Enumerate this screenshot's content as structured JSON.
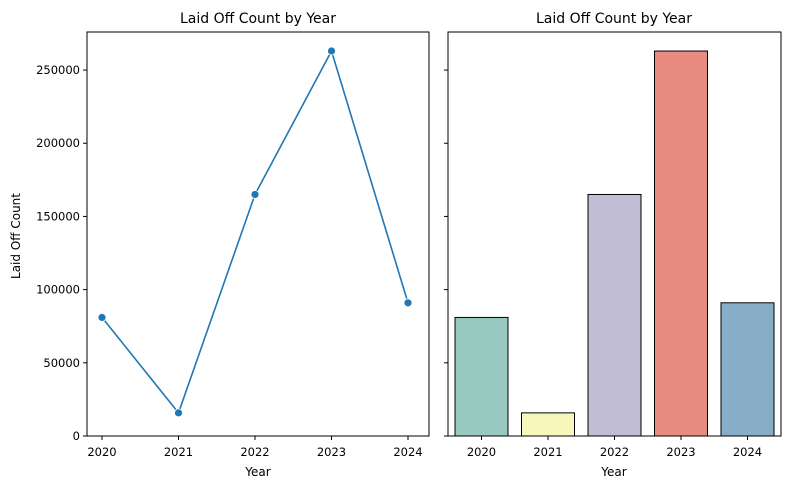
{
  "chart_data": [
    {
      "type": "line",
      "title": "Laid Off Count by Year",
      "xlabel": "Year",
      "ylabel": "Laid Off Count",
      "x": [
        "2020",
        "2021",
        "2022",
        "2023",
        "2024"
      ],
      "values": [
        81000,
        15800,
        165000,
        263000,
        91000
      ],
      "ylim": [
        0,
        276000
      ],
      "yticks": [
        "0",
        "50000",
        "100000",
        "150000",
        "200000",
        "250000"
      ],
      "marker": "circle",
      "line_color": "#1f77b4",
      "grid": false
    },
    {
      "type": "bar",
      "title": "Laid Off Count by Year",
      "xlabel": "Year",
      "ylabel": "",
      "categories": [
        "2020",
        "2021",
        "2022",
        "2023",
        "2024"
      ],
      "values": [
        81000,
        15800,
        165000,
        263000,
        91000
      ],
      "ylim": [
        0,
        276000
      ],
      "shared_y": true,
      "colors": [
        "#98c9c0",
        "#f7f6bb",
        "#c1bdd5",
        "#e98b80",
        "#88adc9"
      ],
      "edge_color": "#000000",
      "grid": false
    }
  ]
}
